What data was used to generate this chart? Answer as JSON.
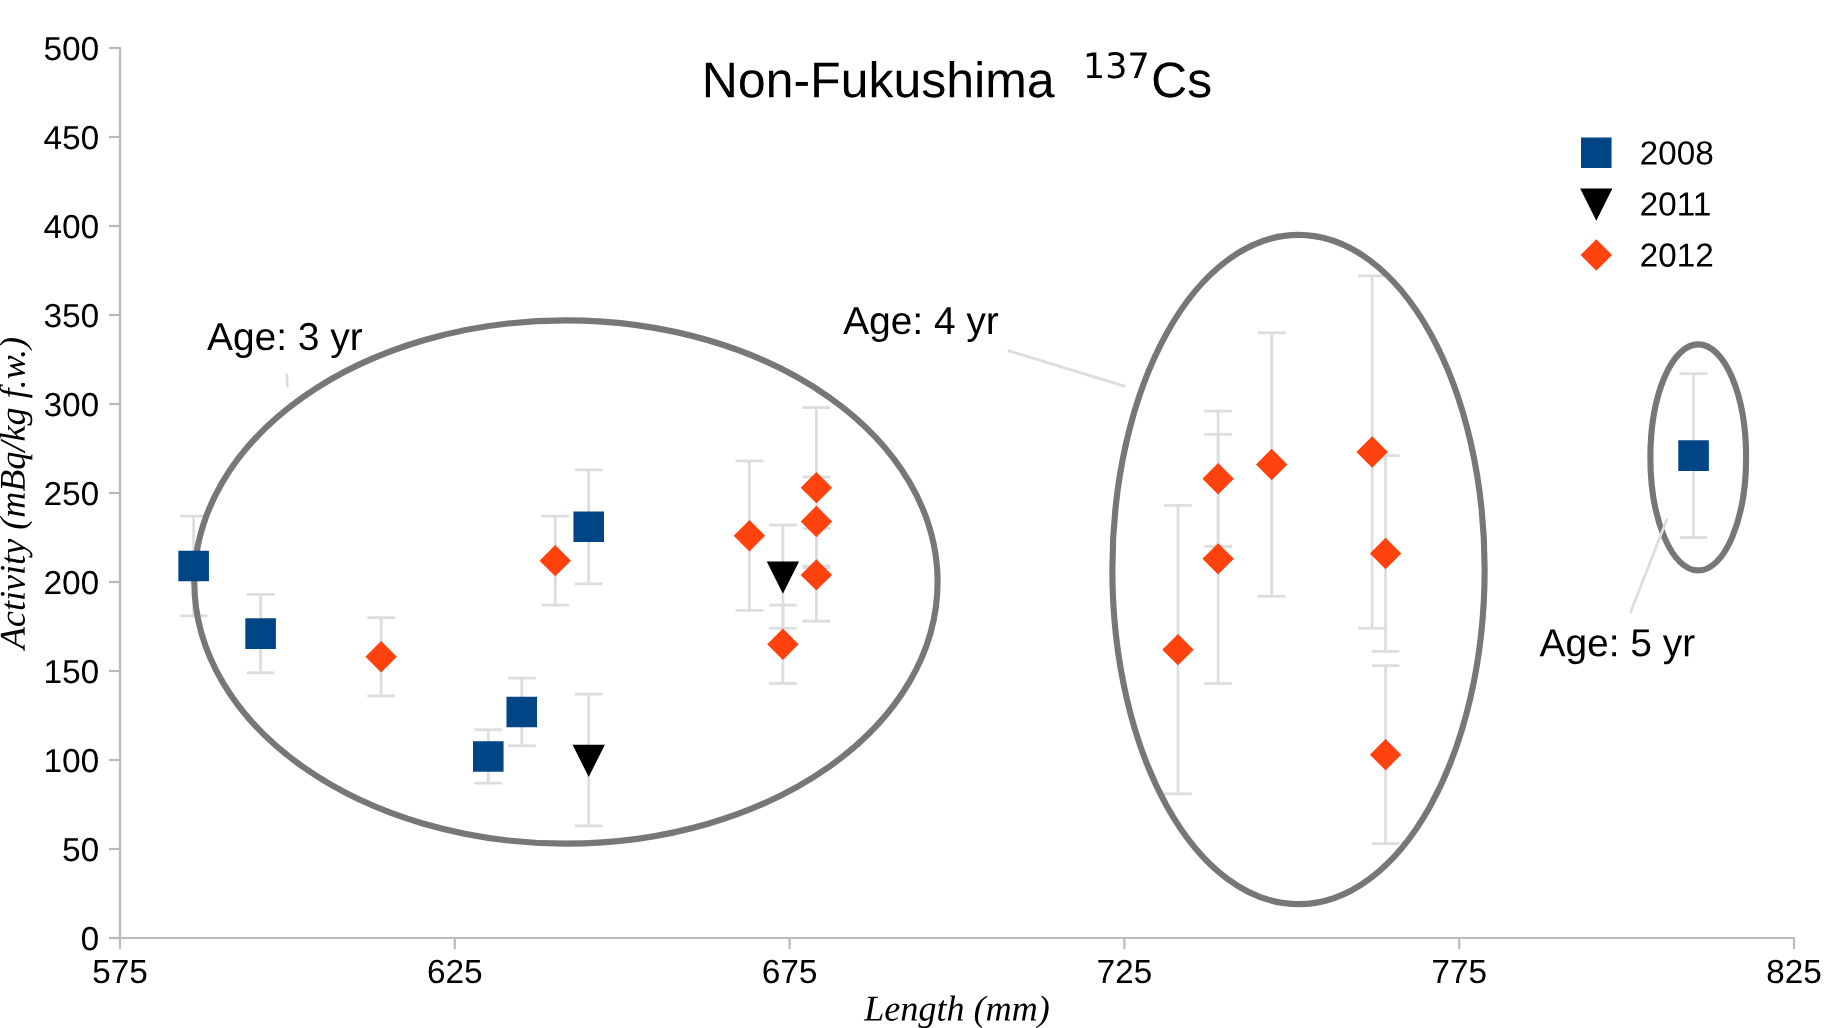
{
  "chart_data": {
    "type": "scatter",
    "title": "Non-Fukushima  $^{137}$Cs",
    "xlabel": "Length (mm)",
    "ylabel": "Activity (mBq/kg f.w.)",
    "xlim": [
      575,
      825
    ],
    "xticks": [
      575,
      625,
      675,
      725,
      775,
      825
    ],
    "ylim": [
      0,
      500
    ],
    "yticks": [
      0,
      50,
      100,
      150,
      200,
      250,
      300,
      350,
      400,
      450,
      500
    ],
    "grid": false,
    "legend": "top right",
    "annotations": [
      "Age: 3 yr",
      "Age: 4 yr",
      "Age: 5 yr"
    ],
    "series": [
      {
        "name": "2008",
        "color": "#004586",
        "marker": "square",
        "x": [
          586,
          596,
          630,
          635,
          645,
          810
        ],
        "values": [
          209,
          171,
          102,
          127,
          231,
          271
        ],
        "errors": [
          28,
          22,
          15,
          19,
          32,
          46
        ]
      },
      {
        "name": "2011",
        "color": "#000000",
        "marker": "triangle",
        "x": [
          645,
          674
        ],
        "values": [
          100,
          203
        ],
        "errors": [
          37,
          29
        ]
      },
      {
        "name": "2012",
        "color": "#ff420e",
        "marker": "diamond",
        "x": [
          614,
          640,
          669,
          674,
          679,
          679,
          679,
          733,
          739,
          739,
          747,
          762,
          764,
          764
        ],
        "values": [
          158,
          212,
          226,
          165,
          253,
          234,
          204,
          162,
          258,
          213,
          266,
          273,
          216,
          103
        ],
        "errors": [
          22,
          25,
          42,
          22,
          45,
          25,
          26,
          81,
          38,
          70,
          74,
          99,
          55,
          50
        ]
      }
    ]
  }
}
